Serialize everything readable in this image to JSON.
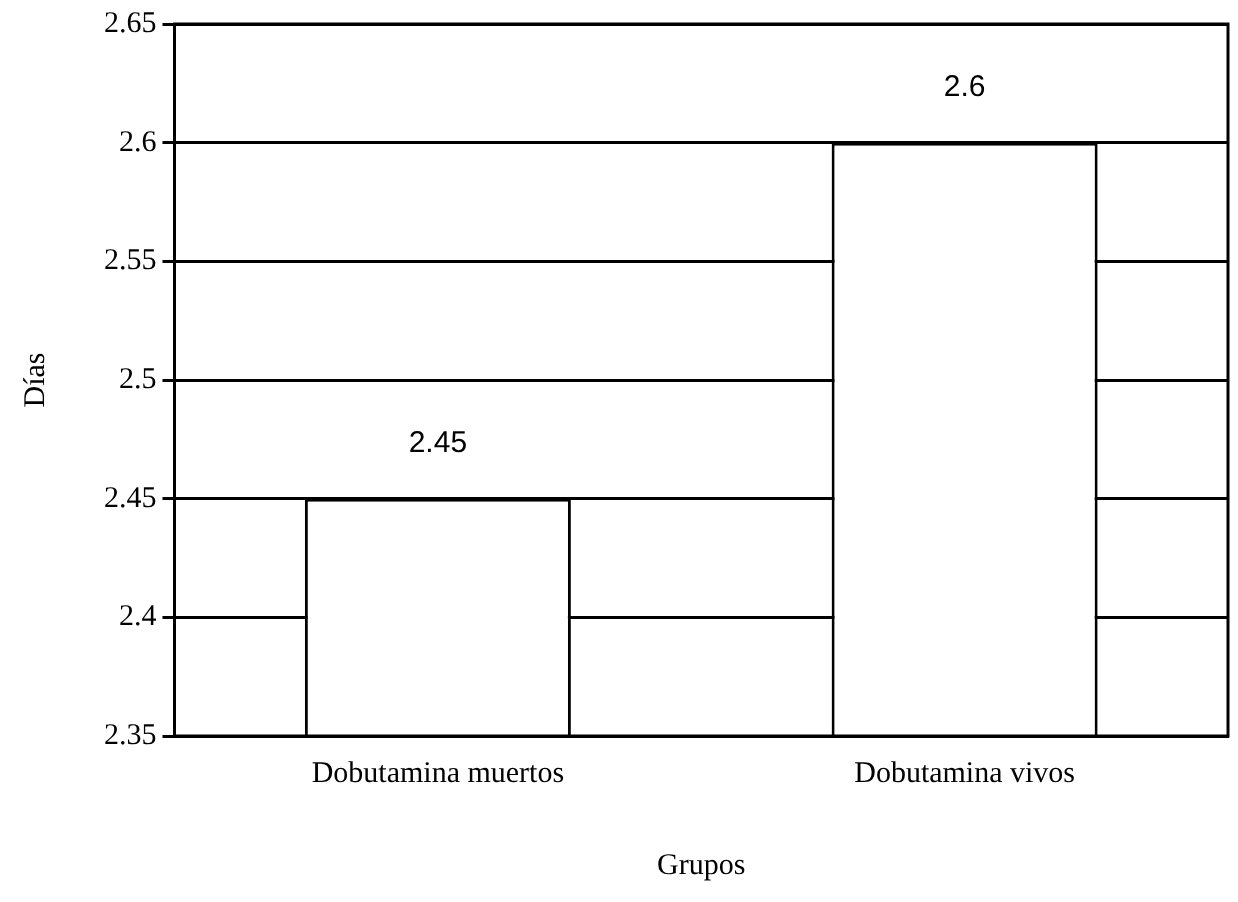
{
  "chart_data": {
    "type": "bar",
    "xlabel": "Grupos",
    "ylabel": "Días",
    "categories": [
      "Dobutamina muertos",
      "Dobutamina vivos"
    ],
    "values": [
      2.45,
      2.6
    ],
    "color": "#ffffff",
    "ylim": [
      2.35,
      2.65
    ],
    "yticks": [
      2.35,
      2.4,
      2.45,
      2.5,
      2.55,
      2.6,
      2.65
    ],
    "grid": "y",
    "data_labels": true,
    "legend": false
  }
}
